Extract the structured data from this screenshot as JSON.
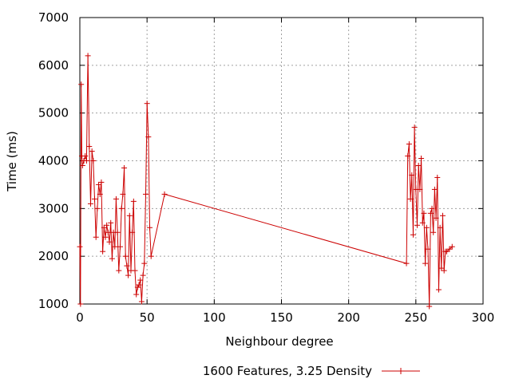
{
  "chart_data": {
    "type": "line",
    "title": "",
    "xlabel": "Neighbour degree",
    "ylabel": "Time (ms)",
    "xlim": [
      0,
      300
    ],
    "ylim": [
      1000,
      7000
    ],
    "x_ticks": [
      "0",
      "50",
      "100",
      "150",
      "200",
      "250",
      "300"
    ],
    "y_ticks": [
      "1000",
      "2000",
      "3000",
      "4000",
      "5000",
      "6000",
      "7000"
    ],
    "grid": true,
    "legend_position": "bottom-center",
    "colors": {
      "series": "#cc0000",
      "grid": "#a0a0a0",
      "axis": "#000000"
    },
    "series": [
      {
        "name": "1600 Features, 3.25 Density",
        "marker": "plus",
        "points": [
          [
            0,
            2200
          ],
          [
            0.5,
            1000
          ],
          [
            1,
            5600
          ],
          [
            1.5,
            4100
          ],
          [
            2,
            3900
          ],
          [
            3,
            4000
          ],
          [
            4,
            4100
          ],
          [
            5,
            4000
          ],
          [
            6,
            6200
          ],
          [
            7,
            4300
          ],
          [
            8,
            3100
          ],
          [
            9,
            4200
          ],
          [
            10,
            4000
          ],
          [
            11,
            3200
          ],
          [
            12,
            2400
          ],
          [
            13,
            3000
          ],
          [
            14,
            3500
          ],
          [
            15,
            3300
          ],
          [
            16,
            3550
          ],
          [
            17,
            2100
          ],
          [
            18,
            2600
          ],
          [
            19,
            2400
          ],
          [
            20,
            2650
          ],
          [
            21,
            2500
          ],
          [
            22,
            2300
          ],
          [
            23,
            2700
          ],
          [
            24,
            1950
          ],
          [
            25,
            2500
          ],
          [
            26,
            2200
          ],
          [
            27,
            3200
          ],
          [
            28,
            2500
          ],
          [
            29,
            1700
          ],
          [
            30,
            2200
          ],
          [
            31,
            3000
          ],
          [
            32,
            3300
          ],
          [
            33,
            3850
          ],
          [
            34,
            2000
          ],
          [
            35,
            1800
          ],
          [
            36,
            1600
          ],
          [
            37,
            2850
          ],
          [
            38,
            1700
          ],
          [
            39,
            2500
          ],
          [
            40,
            3150
          ],
          [
            41,
            1700
          ],
          [
            42,
            1200
          ],
          [
            43,
            1350
          ],
          [
            44,
            1400
          ],
          [
            45,
            1500
          ],
          [
            46,
            1050
          ],
          [
            47,
            1600
          ],
          [
            48,
            1850
          ],
          [
            49,
            3300
          ],
          [
            50,
            5200
          ],
          [
            51,
            4500
          ],
          [
            52,
            2600
          ],
          [
            53,
            2000
          ],
          [
            63,
            3300
          ],
          [
            243,
            1850
          ],
          [
            244,
            4100
          ],
          [
            245,
            4350
          ],
          [
            246,
            3200
          ],
          [
            247,
            3700
          ],
          [
            248,
            2450
          ],
          [
            249,
            4700
          ],
          [
            250,
            3400
          ],
          [
            251,
            2650
          ],
          [
            252,
            3900
          ],
          [
            253,
            3400
          ],
          [
            254,
            4050
          ],
          [
            255,
            2700
          ],
          [
            256,
            2900
          ],
          [
            257,
            1850
          ],
          [
            258,
            2600
          ],
          [
            259,
            2150
          ],
          [
            260,
            950
          ],
          [
            261,
            2900
          ],
          [
            262,
            3000
          ],
          [
            263,
            2500
          ],
          [
            264,
            3400
          ],
          [
            265,
            2800
          ],
          [
            266,
            3650
          ],
          [
            267,
            1300
          ],
          [
            268,
            2600
          ],
          [
            269,
            1750
          ],
          [
            270,
            2850
          ],
          [
            271,
            1700
          ],
          [
            272,
            2100
          ],
          [
            273,
            2100
          ],
          [
            275,
            2150
          ],
          [
            277,
            2200
          ]
        ]
      }
    ]
  }
}
